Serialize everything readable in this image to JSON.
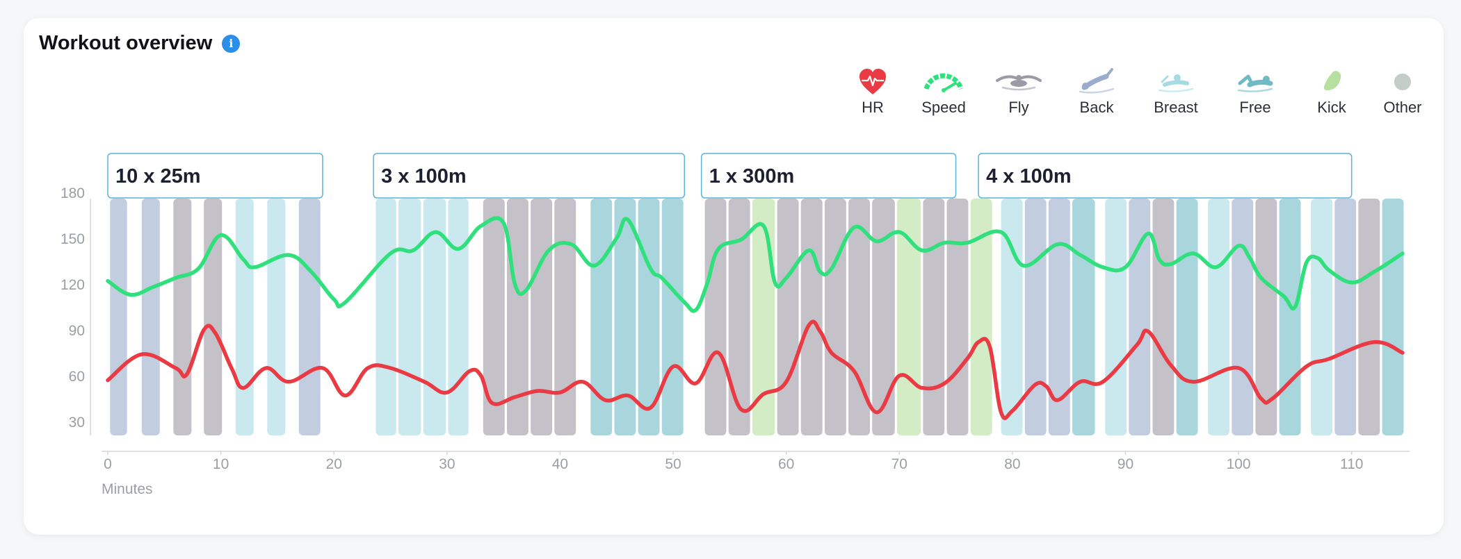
{
  "title": "Workout overview",
  "info_icon": "info-icon",
  "legend": [
    {
      "key": "hr",
      "label": "HR",
      "icon": "heart-icon",
      "color": "#ea3b45"
    },
    {
      "key": "speed",
      "label": "Speed",
      "icon": "speedometer-icon",
      "color": "#2fe07d"
    },
    {
      "key": "fly",
      "label": "Fly",
      "icon": "butterfly-swimmer-icon",
      "color": "#9c9aa4"
    },
    {
      "key": "back",
      "label": "Back",
      "icon": "backstroke-swimmer-icon",
      "color": "#9aaccb"
    },
    {
      "key": "breast",
      "label": "Breast",
      "icon": "breaststroke-swimmer-icon",
      "color": "#a7dbe3"
    },
    {
      "key": "free",
      "label": "Free",
      "icon": "freestyle-swimmer-icon",
      "color": "#6fbac5"
    },
    {
      "key": "kick",
      "label": "Kick",
      "icon": "kickboard-icon",
      "color": "#b6dfa0"
    },
    {
      "key": "other",
      "label": "Other",
      "icon": "circle-icon",
      "color": "#c1cdc6"
    }
  ],
  "chart_data": {
    "type": "line",
    "xlabel": "Minutes",
    "xlim": [
      0,
      115
    ],
    "ylim": [
      15,
      195
    ],
    "x_ticks": [
      0,
      10,
      20,
      30,
      40,
      50,
      60,
      70,
      80,
      90,
      100,
      110
    ],
    "y_ticks": [
      30,
      60,
      90,
      120,
      150,
      180
    ],
    "sets": [
      {
        "label": "10 x 25m",
        "start": 0,
        "end": 19
      },
      {
        "label": "3 x 100m",
        "start": 23.5,
        "end": 51
      },
      {
        "label": "1 x 300m",
        "start": 52.5,
        "end": 75
      },
      {
        "label": "4 x 100m",
        "start": 77,
        "end": 110
      }
    ],
    "intervals": [
      {
        "start": 0.2,
        "end": 1.7,
        "stroke": "back"
      },
      {
        "start": 3.0,
        "end": 4.6,
        "stroke": "back"
      },
      {
        "start": 5.8,
        "end": 7.4,
        "stroke": "fly"
      },
      {
        "start": 8.5,
        "end": 10.1,
        "stroke": "fly"
      },
      {
        "start": 11.3,
        "end": 12.9,
        "stroke": "breast"
      },
      {
        "start": 14.1,
        "end": 15.7,
        "stroke": "breast"
      },
      {
        "start": 16.9,
        "end": 18.8,
        "stroke": "back"
      },
      {
        "start": 23.7,
        "end": 25.5,
        "stroke": "breast"
      },
      {
        "start": 25.7,
        "end": 27.7,
        "stroke": "breast"
      },
      {
        "start": 27.9,
        "end": 29.9,
        "stroke": "breast"
      },
      {
        "start": 30.1,
        "end": 31.9,
        "stroke": "breast"
      },
      {
        "start": 33.2,
        "end": 35.1,
        "stroke": "fly"
      },
      {
        "start": 35.3,
        "end": 37.2,
        "stroke": "fly"
      },
      {
        "start": 37.4,
        "end": 39.3,
        "stroke": "fly"
      },
      {
        "start": 39.5,
        "end": 41.4,
        "stroke": "fly"
      },
      {
        "start": 42.7,
        "end": 44.6,
        "stroke": "free"
      },
      {
        "start": 44.8,
        "end": 46.7,
        "stroke": "free"
      },
      {
        "start": 46.9,
        "end": 48.8,
        "stroke": "free"
      },
      {
        "start": 49.0,
        "end": 50.9,
        "stroke": "free"
      },
      {
        "start": 52.8,
        "end": 54.7,
        "stroke": "fly"
      },
      {
        "start": 54.9,
        "end": 56.8,
        "stroke": "fly"
      },
      {
        "start": 57.0,
        "end": 59.0,
        "stroke": "kick"
      },
      {
        "start": 59.2,
        "end": 61.1,
        "stroke": "fly"
      },
      {
        "start": 61.3,
        "end": 63.2,
        "stroke": "fly"
      },
      {
        "start": 63.4,
        "end": 65.3,
        "stroke": "fly"
      },
      {
        "start": 65.5,
        "end": 67.4,
        "stroke": "fly"
      },
      {
        "start": 67.6,
        "end": 69.6,
        "stroke": "fly"
      },
      {
        "start": 69.8,
        "end": 71.9,
        "stroke": "kick"
      },
      {
        "start": 72.1,
        "end": 74.0,
        "stroke": "fly"
      },
      {
        "start": 74.2,
        "end": 76.1,
        "stroke": "fly"
      },
      {
        "start": 76.3,
        "end": 78.2,
        "stroke": "kick"
      },
      {
        "start": 79.0,
        "end": 80.9,
        "stroke": "breast"
      },
      {
        "start": 81.1,
        "end": 83.0,
        "stroke": "back"
      },
      {
        "start": 83.2,
        "end": 85.1,
        "stroke": "back"
      },
      {
        "start": 85.3,
        "end": 87.3,
        "stroke": "free"
      },
      {
        "start": 88.2,
        "end": 90.1,
        "stroke": "breast"
      },
      {
        "start": 90.3,
        "end": 92.2,
        "stroke": "back"
      },
      {
        "start": 92.4,
        "end": 94.3,
        "stroke": "fly"
      },
      {
        "start": 94.5,
        "end": 96.4,
        "stroke": "free"
      },
      {
        "start": 97.3,
        "end": 99.2,
        "stroke": "breast"
      },
      {
        "start": 99.4,
        "end": 101.3,
        "stroke": "back"
      },
      {
        "start": 101.5,
        "end": 103.4,
        "stroke": "fly"
      },
      {
        "start": 103.6,
        "end": 105.5,
        "stroke": "free"
      },
      {
        "start": 106.4,
        "end": 108.3,
        "stroke": "breast"
      },
      {
        "start": 108.5,
        "end": 110.4,
        "stroke": "back"
      },
      {
        "start": 110.6,
        "end": 112.5,
        "stroke": "fly"
      },
      {
        "start": 112.7,
        "end": 114.6,
        "stroke": "free"
      }
    ],
    "series": [
      {
        "name": "Speed",
        "color": "#2fe07d",
        "points": [
          [
            0,
            122
          ],
          [
            2,
            113
          ],
          [
            4,
            118
          ],
          [
            6,
            124
          ],
          [
            8,
            130
          ],
          [
            10,
            152
          ],
          [
            12,
            136
          ],
          [
            13,
            131
          ],
          [
            16,
            139
          ],
          [
            18,
            128
          ],
          [
            20,
            110
          ],
          [
            21,
            108
          ],
          [
            25,
            140
          ],
          [
            27,
            142
          ],
          [
            29,
            154
          ],
          [
            31,
            143
          ],
          [
            33,
            158
          ],
          [
            35,
            160
          ],
          [
            36,
            120
          ],
          [
            37,
            116
          ],
          [
            39,
            142
          ],
          [
            41,
            146
          ],
          [
            43,
            132
          ],
          [
            45,
            150
          ],
          [
            46,
            162
          ],
          [
            48,
            130
          ],
          [
            49,
            124
          ],
          [
            51,
            108
          ],
          [
            52,
            103
          ],
          [
            53,
            120
          ],
          [
            54,
            143
          ],
          [
            56,
            149
          ],
          [
            58,
            158
          ],
          [
            59,
            121
          ],
          [
            60,
            124
          ],
          [
            62,
            142
          ],
          [
            63,
            128
          ],
          [
            64,
            130
          ],
          [
            66,
            157
          ],
          [
            68,
            148
          ],
          [
            70,
            154
          ],
          [
            72,
            142
          ],
          [
            74,
            147
          ],
          [
            76,
            147
          ],
          [
            79,
            154
          ],
          [
            81,
            132
          ],
          [
            84,
            146
          ],
          [
            86,
            139
          ],
          [
            88,
            131
          ],
          [
            90,
            131
          ],
          [
            92,
            153
          ],
          [
            93,
            136
          ],
          [
            94,
            133
          ],
          [
            96,
            140
          ],
          [
            98,
            131
          ],
          [
            100,
            145
          ],
          [
            101,
            137
          ],
          [
            102,
            124
          ],
          [
            104,
            112
          ],
          [
            105,
            105
          ],
          [
            106,
            134
          ],
          [
            107,
            137
          ],
          [
            108,
            129
          ],
          [
            110,
            121
          ],
          [
            112,
            128
          ],
          [
            114.5,
            140
          ]
        ]
      },
      {
        "name": "HR",
        "color": "#ea3b45",
        "points": [
          [
            0,
            57
          ],
          [
            3,
            74
          ],
          [
            6,
            65
          ],
          [
            7,
            61
          ],
          [
            8.5,
            90
          ],
          [
            9.5,
            88
          ],
          [
            11,
            64
          ],
          [
            12,
            52
          ],
          [
            14,
            65
          ],
          [
            16,
            56
          ],
          [
            19,
            65
          ],
          [
            21,
            47
          ],
          [
            23,
            65
          ],
          [
            25,
            65
          ],
          [
            28,
            56
          ],
          [
            30,
            49
          ],
          [
            32,
            63
          ],
          [
            33,
            60
          ],
          [
            34,
            42
          ],
          [
            36,
            46
          ],
          [
            38,
            50
          ],
          [
            40,
            49
          ],
          [
            42,
            56
          ],
          [
            44,
            44
          ],
          [
            46,
            47
          ],
          [
            48,
            39
          ],
          [
            50,
            66
          ],
          [
            52,
            55
          ],
          [
            54,
            75
          ],
          [
            56,
            38
          ],
          [
            58,
            48
          ],
          [
            60,
            56
          ],
          [
            62,
            93
          ],
          [
            63,
            89
          ],
          [
            64,
            75
          ],
          [
            66,
            63
          ],
          [
            68,
            36
          ],
          [
            70,
            60
          ],
          [
            72,
            52
          ],
          [
            74,
            55
          ],
          [
            76,
            71
          ],
          [
            77,
            82
          ],
          [
            78,
            79
          ],
          [
            79,
            36
          ],
          [
            80,
            37
          ],
          [
            82,
            54
          ],
          [
            83,
            53
          ],
          [
            84,
            44
          ],
          [
            86,
            56
          ],
          [
            88,
            56
          ],
          [
            91,
            80
          ],
          [
            92,
            89
          ],
          [
            94,
            67
          ],
          [
            96,
            56
          ],
          [
            100,
            65
          ],
          [
            102,
            45
          ],
          [
            103,
            45
          ],
          [
            106,
            66
          ],
          [
            108,
            71
          ],
          [
            112,
            82
          ],
          [
            114.5,
            75
          ]
        ]
      }
    ]
  }
}
